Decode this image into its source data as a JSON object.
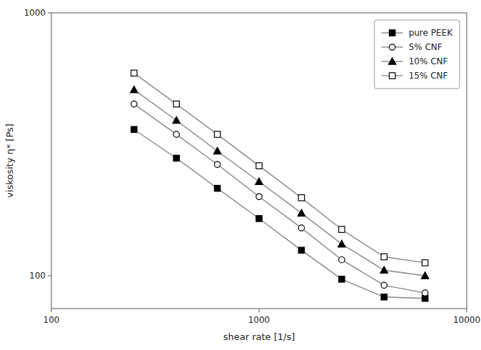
{
  "chart_data": {
    "type": "line",
    "xlabel": "shear rate [1/s]",
    "ylabel": "viskosity η* [Ps]",
    "log": true,
    "xlim": [
      100,
      10000
    ],
    "ylim": [
      75,
      1000
    ],
    "xticks": [
      100,
      1000,
      10000
    ],
    "yticks": [
      100,
      1000
    ],
    "grid": false,
    "legend": "upper right",
    "x": [
      250,
      400,
      630,
      1000,
      1600,
      2500,
      4000,
      6300
    ],
    "series": [
      {
        "name": "pure PEEK",
        "color": "#888888",
        "marker": "filled-square",
        "values": [
          360,
          280,
          215,
          165,
          125,
          97,
          83,
          82
        ]
      },
      {
        "name": "5% CNF",
        "color": "#888888",
        "marker": "open-circle",
        "values": [
          450,
          345,
          265,
          200,
          152,
          115,
          92,
          86
        ]
      },
      {
        "name": "10% CNF",
        "color": "#888888",
        "marker": "filled-triangle",
        "values": [
          510,
          390,
          298,
          228,
          173,
          132,
          105,
          100
        ]
      },
      {
        "name": "15% CNF",
        "color": "#888888",
        "marker": "open-square",
        "values": [
          590,
          450,
          345,
          262,
          198,
          150,
          118,
          112
        ]
      }
    ]
  }
}
